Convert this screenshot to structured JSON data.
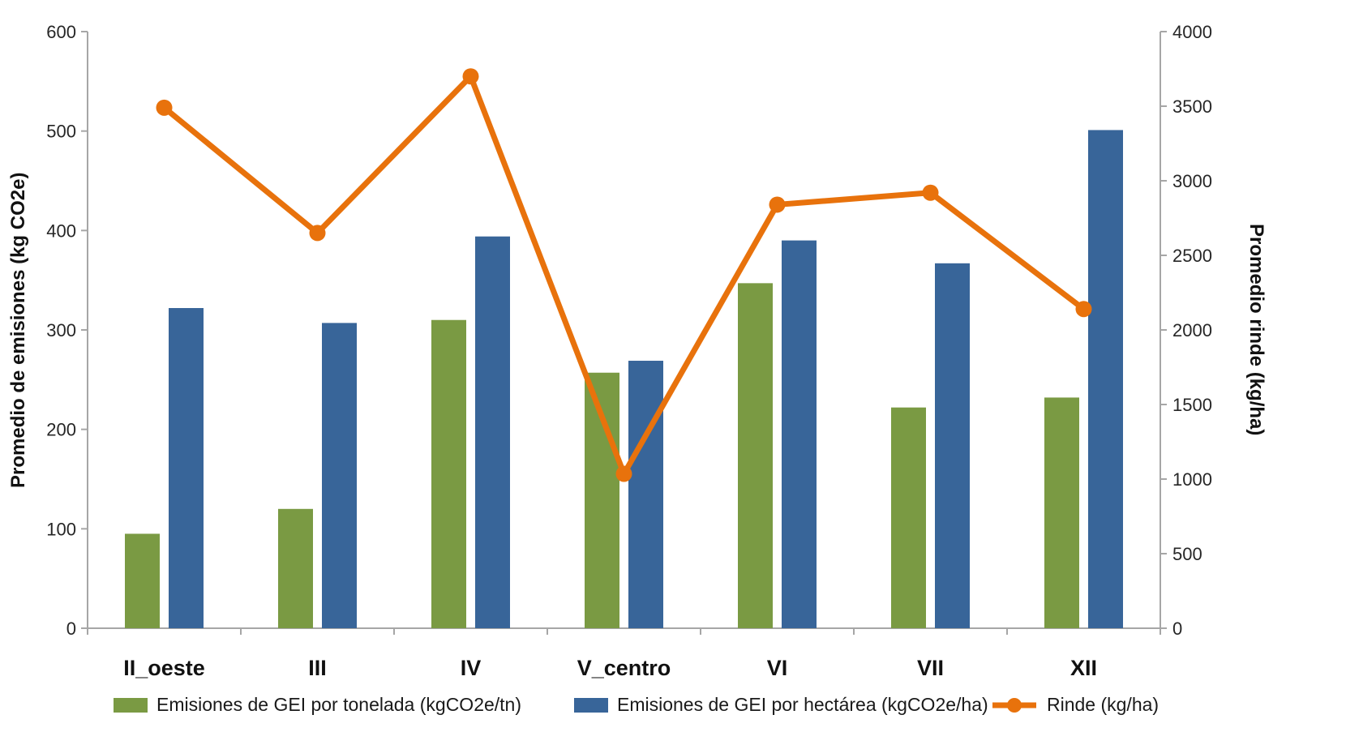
{
  "chart_data": {
    "type": "combo",
    "categories": [
      "II_oeste",
      "III",
      "IV",
      "V_centro",
      "VI",
      "VII",
      "XII"
    ],
    "series": [
      {
        "name": "Emisiones de GEI por tonelada (kgCO2e/tn)",
        "type": "bar",
        "axis": "left",
        "color": "#7A9A43",
        "values": [
          95,
          120,
          310,
          257,
          347,
          222,
          232
        ]
      },
      {
        "name": "Emisiones de GEI por hectárea (kgCO2e/ha)",
        "type": "bar",
        "axis": "left",
        "color": "#386599",
        "values": [
          322,
          307,
          394,
          269,
          390,
          367,
          501
        ]
      },
      {
        "name": "Rinde (kg/ha)",
        "type": "line",
        "axis": "right",
        "color": "#E8720C",
        "values": [
          3490,
          2650,
          3700,
          1035,
          2840,
          2920,
          2140
        ]
      }
    ],
    "left_axis": {
      "title": "Promedio de emisiones (kg CO2e)",
      "min": 0,
      "max": 600,
      "step": 100,
      "tick_labels": [
        "0",
        "100",
        "200",
        "300",
        "400",
        "500",
        "600"
      ]
    },
    "right_axis": {
      "title": "Promedio rinde (kg/ha)",
      "min": 0,
      "max": 4000,
      "step": 500,
      "tick_labels": [
        "0",
        "500",
        "1000",
        "1500",
        "2000",
        "2500",
        "3000",
        "3500",
        "4000"
      ]
    },
    "legend": {
      "position": "bottom"
    },
    "grid": false,
    "axis_color": "#A6A6A6",
    "text_color": "#262626"
  }
}
